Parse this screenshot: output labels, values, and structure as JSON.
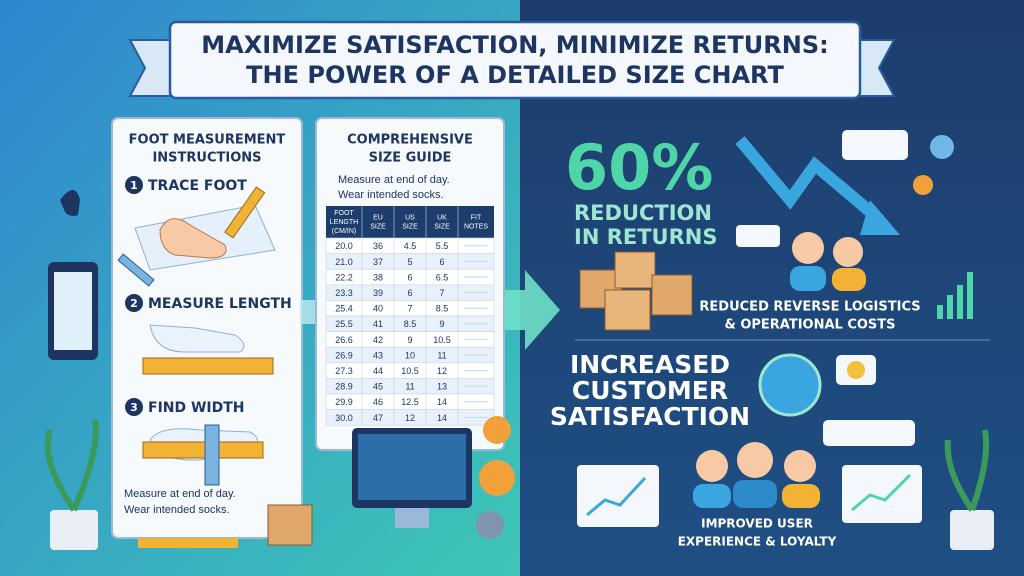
{
  "title": {
    "lines": [
      "MAXIMIZE SATISFACTION, MINIMIZE RETURNS:",
      "THE POWER OF A DETAILED SIZE CHART"
    ]
  },
  "instructions": {
    "heading": [
      "FOOT MEASUREMENT",
      "INSTRUCTIONS"
    ],
    "steps": [
      {
        "number": "1",
        "label": "TRACE FOOT"
      },
      {
        "number": "2",
        "label": "MEASURE LENGTH"
      },
      {
        "number": "3",
        "label": "FIND WIDTH"
      }
    ],
    "notes": [
      "Measure at end of day.",
      "Wear intended socks."
    ]
  },
  "size_guide": {
    "heading": [
      "COMPREHENSIVE",
      "SIZE GUIDE"
    ],
    "notes": [
      "Measure at end of day.",
      "Wear intended socks."
    ],
    "table": {
      "header": [
        [
          "FOOT",
          "LENGTH",
          "(CM/IN)"
        ],
        [
          "EU",
          "SIZE"
        ],
        [
          "US",
          "SIZE"
        ],
        [
          "UK",
          "SIZE"
        ],
        [
          "FIT",
          "NOTES"
        ]
      ],
      "rows": [
        [
          "20.0",
          "36",
          "4.5",
          "5.5"
        ],
        [
          "21.0",
          "37",
          "5",
          "6"
        ],
        [
          "22.2",
          "38",
          "6",
          "6.5"
        ],
        [
          "23.3",
          "39",
          "6",
          "7"
        ],
        [
          "25.4",
          "40",
          "7",
          "8.5"
        ],
        [
          "25.5",
          "41",
          "8.5",
          "9"
        ],
        [
          "26.6",
          "42",
          "9",
          "10.5"
        ],
        [
          "26.9",
          "43",
          "10",
          "11"
        ],
        [
          "27.3",
          "44",
          "10.5",
          "12"
        ],
        [
          "28.9",
          "45",
          "11",
          "13"
        ],
        [
          "29.9",
          "46",
          "12.5",
          "14"
        ],
        [
          "30.0",
          "47",
          "12",
          "14"
        ]
      ]
    }
  },
  "returns": {
    "stat": "60%",
    "label": [
      "REDUCTION",
      "IN RETURNS"
    ],
    "caption": [
      "REDUCED REVERSE LOGISTICS",
      "& OPERATIONAL COSTS"
    ]
  },
  "satisfaction": {
    "label": [
      "INCREASED",
      "CUSTOMER",
      "SATISFACTION"
    ],
    "caption": [
      "IMPROVED USER",
      "EXPERIENCE & LOYALTY"
    ]
  }
}
